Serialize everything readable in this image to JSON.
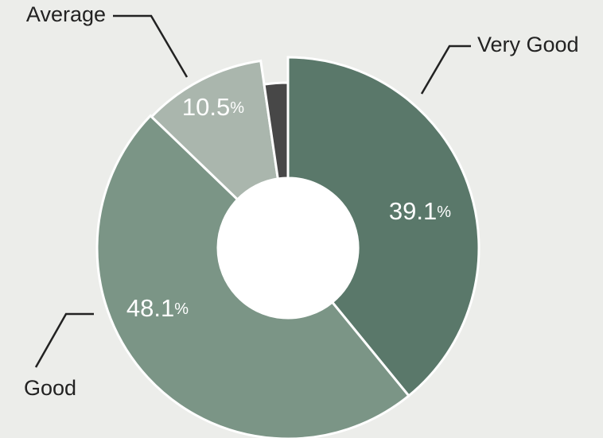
{
  "chart_data": {
    "type": "donut",
    "categories": [
      "Very Good",
      "Good",
      "Average",
      null
    ],
    "values": [
      39.1,
      48.1,
      10.5,
      2.3
    ],
    "value_labels": [
      "39.1%",
      "48.1%",
      "10.5%",
      null
    ],
    "colors": [
      "#5a786a",
      "#7b9586",
      "#aab6ad",
      "#474747"
    ]
  }
}
